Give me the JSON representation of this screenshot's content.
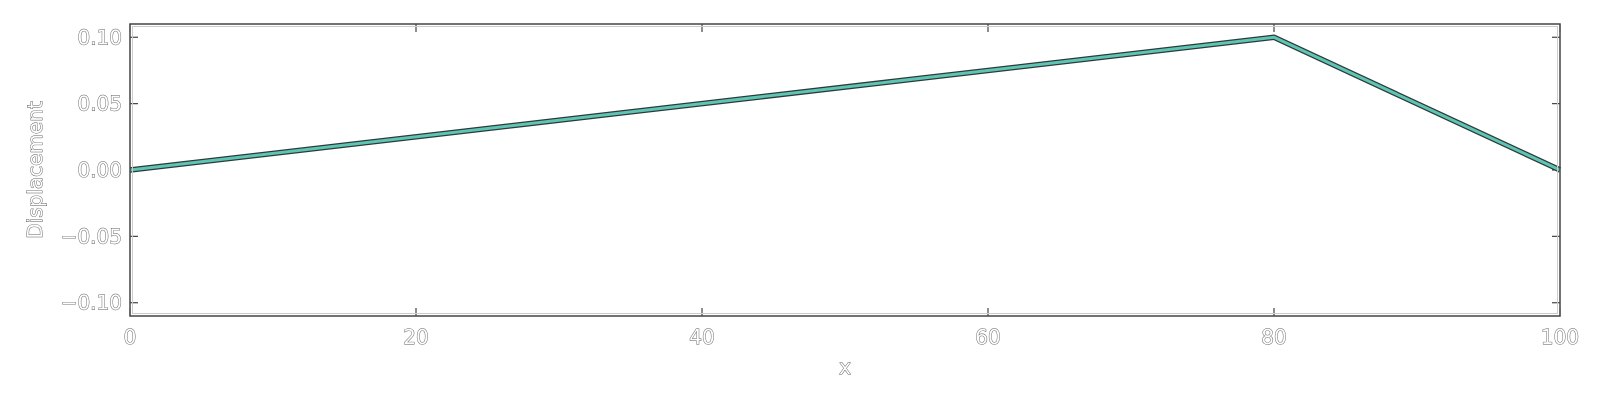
{
  "chart_data": {
    "type": "line",
    "title": "",
    "xlabel": "x",
    "ylabel": "Displacement",
    "xlim": [
      0,
      100
    ],
    "ylim": [
      -0.11,
      0.11
    ],
    "xticks": [
      0,
      20,
      40,
      60,
      80,
      100
    ],
    "yticks": [
      -0.1,
      -0.05,
      0.0,
      0.05,
      0.1
    ],
    "xtick_labels": [
      "0",
      "20",
      "40",
      "60",
      "80",
      "100"
    ],
    "ytick_labels": [
      "−0.10",
      "−0.05",
      "0.00",
      "0.05",
      "0.10"
    ],
    "grid": false,
    "series": [
      {
        "x": [
          0,
          80,
          100
        ],
        "y": [
          0.0,
          0.1,
          0.0
        ],
        "color": "#5fc4b4",
        "outline_color": "#2b3b38"
      }
    ]
  }
}
